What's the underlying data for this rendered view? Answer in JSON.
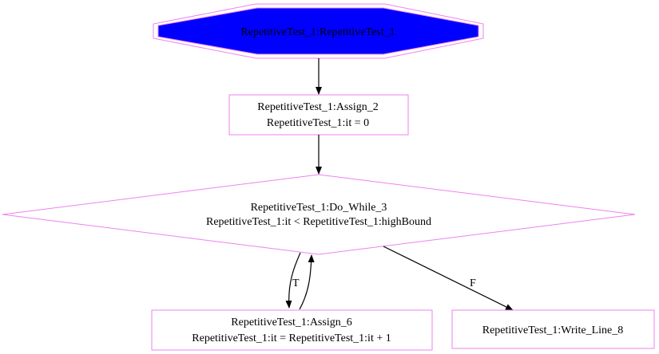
{
  "colors": {
    "border": "#ee82ee",
    "start_fill": "#0000ff",
    "edge": "#000000",
    "text": "#000000",
    "background": "#ffffff"
  },
  "nodes": {
    "start": {
      "line1": "RepetitiveTest_1:RepetitiveTest_1"
    },
    "assign2": {
      "line1": "RepetitiveTest_1:Assign_2",
      "line2": "RepetitiveTest_1:it = 0"
    },
    "dowhile3": {
      "line1": "RepetitiveTest_1:Do_While_3",
      "line2": "RepetitiveTest_1:it < RepetitiveTest_1:highBound"
    },
    "assign6": {
      "line1": "RepetitiveTest_1:Assign_6",
      "line2": "RepetitiveTest_1:it = RepetitiveTest_1:it + 1"
    },
    "writeline8": {
      "line1": "RepetitiveTest_1:Write_Line_8"
    }
  },
  "edges": {
    "true_label": "T",
    "false_label": "F"
  }
}
